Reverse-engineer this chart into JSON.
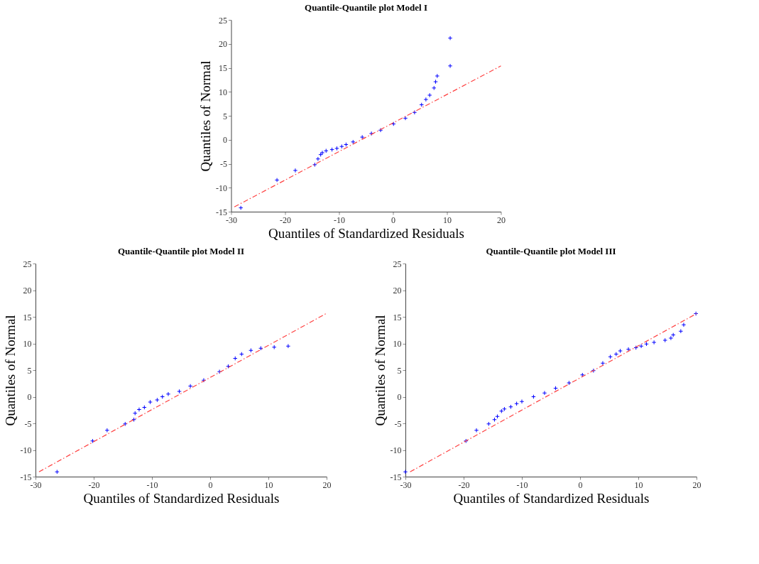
{
  "chart_data": [
    {
      "type": "scatter",
      "title": "Quantile-Quantile plot Model I",
      "xlabel": "Quantiles of Standardized Residuals",
      "ylabel": "Quantiles of Normal",
      "xlim": [
        -30,
        20
      ],
      "ylim": [
        -15,
        25
      ],
      "xticks": [
        -30,
        -20,
        -10,
        0,
        10,
        20
      ],
      "yticks": [
        -15,
        -10,
        -5,
        0,
        5,
        10,
        15,
        20,
        25
      ],
      "marker": "cross",
      "series": [
        {
          "color": "#0000ff",
          "x": [
            -28.2,
            -21.5,
            -18.1,
            -14.5,
            -13.9,
            -13.4,
            -13.1,
            -12.4,
            -11.3,
            -10.4,
            -9.5,
            -8.7,
            -7.4,
            -5.7,
            -4.0,
            -2.3,
            0.1,
            2.3,
            4.0,
            5.3,
            6.1,
            6.8,
            7.6,
            7.9,
            8.2,
            10.6,
            10.6
          ],
          "values": [
            -14.2,
            -8.4,
            -6.4,
            -5.2,
            -4.0,
            -3.1,
            -2.7,
            -2.3,
            -2.05,
            -1.8,
            -1.4,
            -1.0,
            -0.45,
            0.55,
            1.3,
            2.0,
            3.3,
            4.5,
            5.7,
            7.3,
            8.4,
            9.3,
            10.8,
            12.1,
            13.3,
            15.4,
            21.2
          ]
        },
        {
          "type": "line",
          "color": "#ff4040",
          "line_style": "dashed",
          "marker": "none",
          "x": [
            -29.4,
            20
          ],
          "values": [
            -14.0,
            15.4
          ]
        }
      ]
    },
    {
      "type": "scatter",
      "title": "Quantile-Quantile plot Model II",
      "xlabel": "Quantiles of Standardized Residuals",
      "ylabel": "Quantiles of Normal",
      "xlim": [
        -30,
        20
      ],
      "ylim": [
        -15,
        25
      ],
      "xticks": [
        -30,
        -20,
        -10,
        0,
        10,
        20
      ],
      "yticks": [
        -15,
        -10,
        -5,
        0,
        5,
        10,
        15,
        20,
        25
      ],
      "marker": "cross",
      "series": [
        {
          "color": "#0000ff",
          "x": [
            -26.3,
            -20.2,
            -17.7,
            -14.6,
            -13.1,
            -12.9,
            -12.2,
            -11.3,
            -10.3,
            -9.1,
            -8.2,
            -7.2,
            -5.3,
            -3.4,
            -1.1,
            1.6,
            3.1,
            4.3,
            5.4,
            7.0,
            8.7,
            11.0,
            13.4
          ],
          "values": [
            -14.1,
            -8.3,
            -6.3,
            -5.1,
            -4.3,
            -3.1,
            -2.4,
            -2.0,
            -1.0,
            -0.6,
            0.0,
            0.5,
            1.0,
            2.0,
            3.1,
            4.7,
            5.7,
            7.2,
            8.0,
            8.7,
            9.1,
            9.3,
            9.5
          ]
        },
        {
          "type": "line",
          "color": "#ff4040",
          "line_style": "dashed",
          "marker": "none",
          "x": [
            -29.4,
            19.9
          ],
          "values": [
            -14.1,
            15.6
          ]
        }
      ]
    },
    {
      "type": "scatter",
      "title": "Quantile-Quantile plot Model III",
      "xlabel": "Quantiles of Standardized Residuals",
      "ylabel": "Quantiles of Normal",
      "xlim": [
        -30,
        20
      ],
      "ylim": [
        -15,
        25
      ],
      "xticks": [
        -30,
        -20,
        -10,
        0,
        10,
        20
      ],
      "yticks": [
        -15,
        -10,
        -5,
        0,
        5,
        10,
        15,
        20,
        25
      ],
      "marker": "cross",
      "series": [
        {
          "color": "#0000ff",
          "x": [
            -30,
            -19.6,
            -17.8,
            -15.7,
            -14.7,
            -14.2,
            -13.5,
            -13.0,
            -11.9,
            -10.9,
            -10.0,
            -8.0,
            -6.1,
            -4.2,
            -1.9,
            0.4,
            2.3,
            3.9,
            5.2,
            6.2,
            6.9,
            8.3,
            9.6,
            10.5,
            11.4,
            12.7,
            14.6,
            15.6,
            16.0,
            17.3,
            17.8,
            19.9
          ],
          "values": [
            -14.1,
            -8.3,
            -6.3,
            -5.1,
            -4.3,
            -3.7,
            -2.7,
            -2.3,
            -1.9,
            -1.3,
            -0.9,
            0.0,
            0.7,
            1.6,
            2.6,
            4.1,
            4.9,
            6.3,
            7.5,
            8.0,
            8.6,
            8.9,
            9.2,
            9.5,
            9.9,
            10.2,
            10.6,
            11.0,
            11.6,
            12.3,
            13.5,
            15.6
          ]
        },
        {
          "type": "line",
          "color": "#ff4040",
          "line_style": "dashed",
          "marker": "none",
          "x": [
            -29.2,
            20
          ],
          "values": [
            -14.1,
            15.6
          ]
        }
      ]
    }
  ]
}
